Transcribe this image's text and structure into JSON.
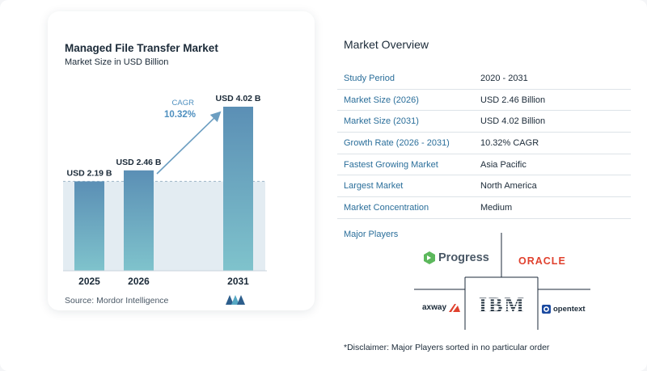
{
  "chart_data": {
    "type": "bar",
    "title": "Managed File Transfer Market",
    "subtitle": "Market Size in USD Billion",
    "categories": [
      "2025",
      "2026",
      "2031"
    ],
    "values": [
      2.19,
      2.46,
      4.02
    ],
    "data_labels": [
      "USD 2.19 B",
      "USD 2.46 B",
      "USD 4.02 B"
    ],
    "cagr_label": "CAGR",
    "cagr_value": "10.32%",
    "ylim": [
      0,
      4.2
    ],
    "colors": {
      "bar_top": "#5b8fb5",
      "bar_bottom": "#7fc3cc",
      "shade": "#e3ecf2",
      "arrow": "#6c9ec1",
      "cagr": "#4e8fbf"
    }
  },
  "source": "Source:  Mordor Intelligence",
  "overview": {
    "title": "Market Overview",
    "rows": [
      {
        "label": "Study Period",
        "value": "2020 - 2031"
      },
      {
        "label": "Market Size (2026)",
        "value": "USD 2.46 Billion"
      },
      {
        "label": "Market Size (2031)",
        "value": "USD 4.02 Billion"
      },
      {
        "label": "Growth Rate (2026 - 2031)",
        "value": "10.32% CAGR"
      },
      {
        "label": "Fastest Growing Market",
        "value": "Asia Pacific"
      },
      {
        "label": "Largest Market",
        "value": "North America"
      },
      {
        "label": "Market Concentration",
        "value": "Medium"
      }
    ]
  },
  "players": {
    "title": "Major Players",
    "logos": {
      "progress": "Progress",
      "oracle": "ORACLE",
      "ibm": "IBM",
      "axway": "axway",
      "opentext": "opentext"
    }
  },
  "disclaimer": "*Disclaimer: Major Players sorted in no particular order"
}
